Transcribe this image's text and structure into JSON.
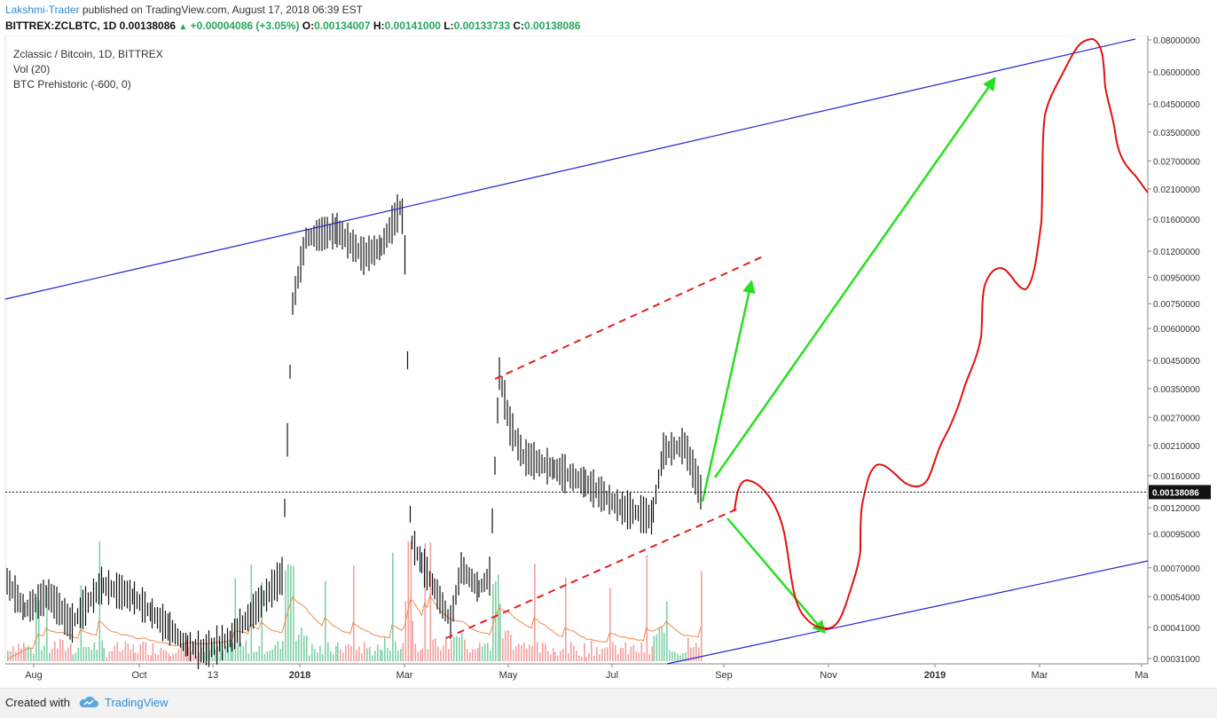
{
  "header": {
    "author": "Lakshmi-Trader",
    "published_text": "published on TradingView.com, August 17, 2018 06:39 EST",
    "symbol": "BITTREX:ZCLBTC, 1D",
    "price": "0.00138086",
    "change": "+0.00004086 (+3.05%)",
    "o_label": "O:",
    "o_value": "0.00134007",
    "h_label": "H:",
    "h_value": "0.00141000",
    "l_label": "L:",
    "l_value": "0.00133733",
    "c_label": "C:",
    "c_value": "0.00138086"
  },
  "legend": {
    "line1": "Zclassic / Bitcoin, 1D, BITTREX",
    "line2": "Vol (20)",
    "line3": "BTC Prehistoric (-600, 0)"
  },
  "footer": {
    "created_with": "Created with",
    "brand": "TradingView"
  },
  "colors": {
    "candle": "#111111",
    "channel": "#2222cc",
    "dashed": "#e31e1e",
    "arrow": "#27e01f",
    "projection": "#e31010",
    "vol_up": "#7fd1a6",
    "vol_down": "#f2a0a0",
    "vol_ma": "#f08a50",
    "last_price_bg": "#111111"
  },
  "chart_data": {
    "type": "line",
    "title": "Zclassic / Bitcoin, 1D, BITTREX",
    "scale": "log",
    "x_ticks": [
      "Aug",
      "Oct",
      "13",
      "2018",
      "Mar",
      "May",
      "Jul",
      "Sep",
      "Nov",
      "2019",
      "Mar",
      "Ma"
    ],
    "y_ticks": [
      "0.08000000",
      "0.06000000",
      "0.04500000",
      "0.03500000",
      "0.02700000",
      "0.02100000",
      "0.01600000",
      "0.01200000",
      "0.00950000",
      "0.00750000",
      "0.00600000",
      "0.00450000",
      "0.00350000",
      "0.00270000",
      "0.00210000",
      "0.00160000",
      "0.00120000",
      "0.00095000",
      "0.00070000",
      "0.00054000",
      "0.00041000",
      "0.00031000"
    ],
    "y_range": [
      0.00029,
      0.085
    ],
    "last_price": "0.00138086",
    "series": [
      {
        "close_path": [
          [
            "Aug",
            0.00062
          ],
          [
            "Aug",
            0.00048
          ],
          [
            "Aug",
            0.00055
          ],
          [
            "Aug",
            0.00042
          ],
          [
            "Aug",
            0.0006
          ],
          [
            "Oct",
            0.00054
          ],
          [
            "Oct",
            0.00047
          ],
          [
            "Oct",
            0.00041
          ],
          [
            "13",
            0.00035
          ],
          [
            "13",
            0.00033
          ],
          [
            "13",
            0.00037
          ],
          [
            "2018",
            0.00065
          ],
          [
            "2018",
            0.0075
          ],
          [
            "2018",
            0.0135
          ],
          [
            "2018",
            0.0145
          ],
          [
            "2018",
            0.0115
          ],
          [
            "2018",
            0.0125
          ],
          [
            "Mar",
            0.018
          ],
          [
            "Mar",
            0.015
          ],
          [
            "Mar",
            0.009
          ],
          [
            "Mar",
            0.0009
          ],
          [
            "Mar",
            0.00075
          ],
          [
            "Mar",
            0.00058
          ],
          [
            "Mar",
            0.00043
          ],
          [
            "Mar",
            0.0007
          ],
          [
            "May",
            0.00058
          ],
          [
            "May",
            0.00065
          ],
          [
            "May",
            0.004
          ],
          [
            "May",
            0.0025
          ],
          [
            "May",
            0.0019
          ],
          [
            "May",
            0.0017
          ],
          [
            "Jul",
            0.0015
          ],
          [
            "Jul",
            0.0012
          ],
          [
            "Jul",
            0.0011
          ],
          [
            "Jul",
            0.002
          ],
          [
            "Jul",
            0.0021
          ],
          [
            "Sep",
            0.00138086
          ]
        ],
        "values": [
          0.00062,
          0.00048,
          0.00055,
          0.00042,
          0.0006,
          0.00054,
          0.00047,
          0.00041,
          0.00035,
          0.00033,
          0.00037,
          0.00065,
          0.0075,
          0.0135,
          0.0145,
          0.0115,
          0.0125,
          0.018,
          0.015,
          0.009,
          0.0009,
          0.00075,
          0.00058,
          0.00043,
          0.0007,
          0.00058,
          0.00065,
          0.004,
          0.0025,
          0.0019,
          0.0017,
          0.0015,
          0.0012,
          0.0011,
          0.002,
          0.0021,
          0.00138086
        ]
      }
    ]
  }
}
